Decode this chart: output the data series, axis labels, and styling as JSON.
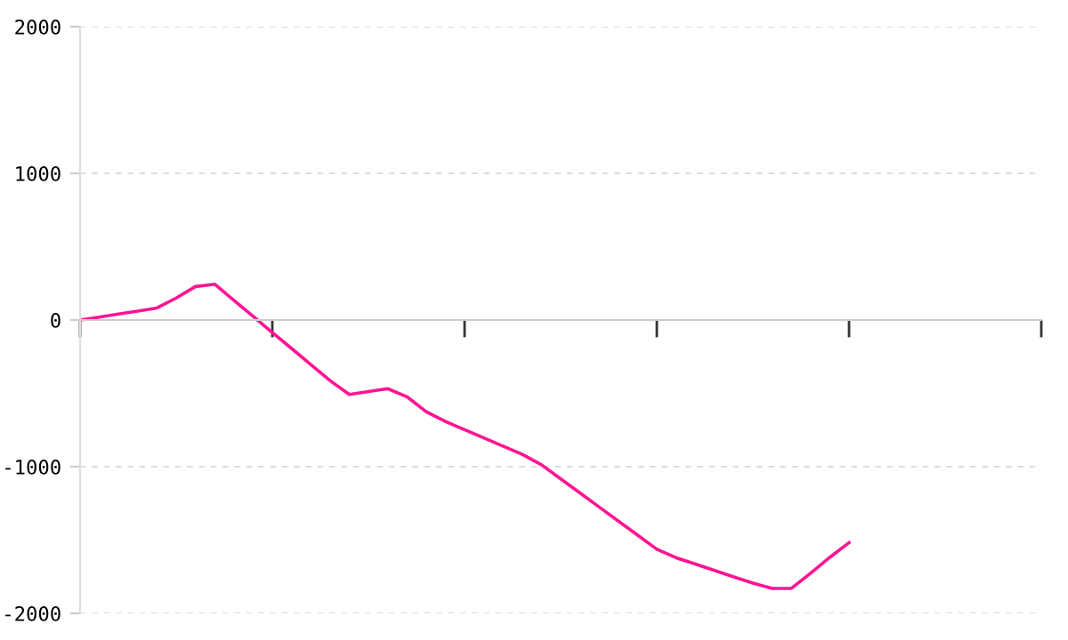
{
  "chart_data": {
    "type": "line",
    "categories": [
      null,
      null,
      null,
      null,
      null,
      null,
      null,
      null,
      null,
      null,
      null,
      null,
      null,
      null,
      null,
      null,
      null,
      null,
      null,
      null,
      null,
      null,
      null,
      null,
      null,
      null,
      null,
      null,
      null,
      null,
      null,
      null,
      null,
      null,
      null,
      null,
      null,
      null,
      null,
      null,
      null,
      null,
      null,
      null,
      null,
      null,
      null,
      null,
      null,
      null,
      null
    ],
    "series": [
      {
        "color": "#ff1493",
        "values": [
          0,
          20,
          41,
          61,
          82,
          150,
          228,
          244,
          134,
          25,
          -85,
          -194,
          -304,
          -413,
          -508,
          -488,
          -468,
          -523,
          -625,
          -692,
          -748,
          -804,
          -860,
          -916,
          -987,
          -1083,
          -1179,
          -1275,
          -1371,
          -1467,
          -1563,
          -1621,
          -1664,
          -1708,
          -1751,
          -1794,
          -1830,
          -1830,
          -1726,
          -1618,
          -1518,
          null,
          null,
          null,
          null,
          null,
          null,
          null,
          null,
          null,
          null
        ]
      }
    ],
    "ylim": [
      -2000,
      2000
    ],
    "yticks": [
      -2000,
      -1000,
      0,
      1000,
      2000
    ],
    "grid": "y",
    "marker": "none",
    "line_style": "solid",
    "tick_labels": "y"
  }
}
